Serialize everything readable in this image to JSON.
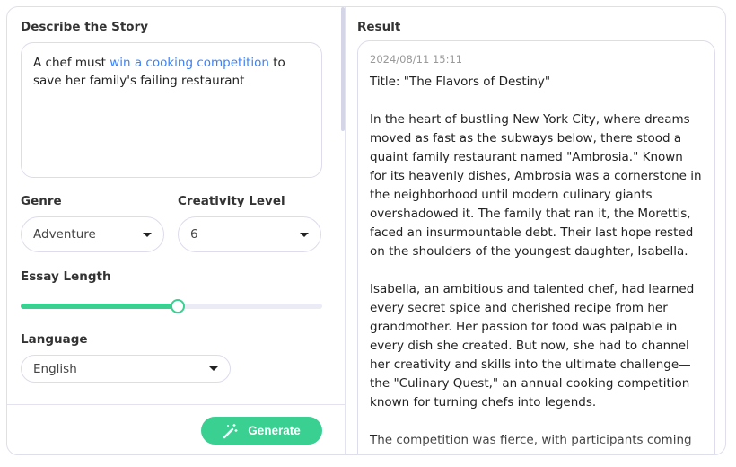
{
  "form": {
    "describe_label": "Describe the Story",
    "story_prompt": {
      "before": "A chef must ",
      "highlight": "win a cooking competition",
      "after": " to save her family's failing restaurant"
    },
    "genre_label": "Genre",
    "genre_value": "Adventure",
    "creativity_label": "Creativity Level",
    "creativity_value": "6",
    "length_label": "Essay Length",
    "length_fraction": 0.52,
    "language_label": "Language",
    "language_value": "English",
    "generate_label": "Generate",
    "generate_icon": "magic-wand-icon"
  },
  "colors": {
    "accent": "#3ad091",
    "highlight": "#3b82f6"
  },
  "result": {
    "label": "Result",
    "timestamp": "2024/08/11 15:11",
    "text": "Title: \"The Flavors of Destiny\"\n\nIn the heart of bustling New York City, where dreams moved as fast as the subways below, there stood a quaint family restaurant named \"Ambrosia.\" Known for its heavenly dishes, Ambrosia was a cornerstone in the neighborhood until modern culinary giants overshadowed it. The family that ran it, the Morettis, faced an insurmountable debt. Their last hope rested on the shoulders of the youngest daughter, Isabella.\n\nIsabella, an ambitious and talented chef, had learned every secret spice and cherished recipe from her grandmother. Her passion for food was palpable in every dish she created. But now, she had to channel her creativity and skills into the ultimate challenge—the \"Culinary Quest,\" an annual cooking competition known for turning chefs into legends.\n\nThe competition was fierce, with participants coming"
  }
}
